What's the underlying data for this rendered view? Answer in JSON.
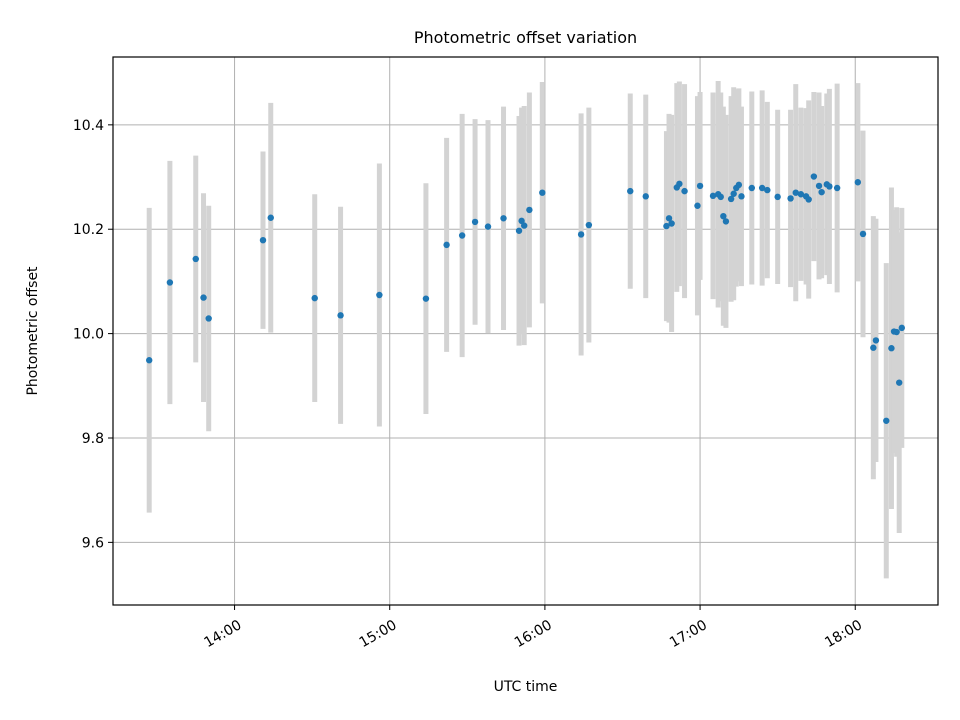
{
  "chart_data": {
    "type": "scatter",
    "title": "Photometric offset variation",
    "xlabel": "UTC time",
    "ylabel": "Photometric offset",
    "x_unit": "UTC hours",
    "xlim": [
      "13:13",
      "18:32"
    ],
    "ylim": [
      9.48,
      10.53
    ],
    "x_ticks": [
      "14:00",
      "15:00",
      "16:00",
      "17:00",
      "18:00"
    ],
    "y_ticks": [
      "9.6",
      "9.8",
      "10.0",
      "10.2",
      "10.4"
    ],
    "grid": true,
    "legend": "none",
    "colors": {
      "points": "#1f77b4",
      "error_bars": "#d3d3d3",
      "grid": "#b0b0b0"
    },
    "series": [
      {
        "x": [
          "13:27",
          "13:35",
          "13:45",
          "13:48",
          "13:50",
          "14:11",
          "14:14",
          "14:31",
          "14:41",
          "14:56",
          "15:14",
          "15:22",
          "15:28",
          "15:33",
          "15:38",
          "15:44",
          "15:50",
          "15:51",
          "15:52",
          "15:54",
          "15:59",
          "16:14",
          "16:17",
          "16:33",
          "16:39",
          "16:47",
          "16:48",
          "16:49",
          "16:51",
          "16:52",
          "16:54",
          "16:59",
          "17:00",
          "17:05",
          "17:07",
          "17:08",
          "17:09",
          "17:10",
          "17:12",
          "17:13",
          "17:14",
          "17:15",
          "17:16",
          "17:20",
          "17:24",
          "17:26",
          "17:30",
          "17:35",
          "17:37",
          "17:39",
          "17:41",
          "17:42",
          "17:44",
          "17:46",
          "17:47",
          "17:49",
          "17:50",
          "17:53",
          "18:01",
          "18:03",
          "18:07",
          "18:08",
          "18:12",
          "18:14",
          "18:15",
          "18:16",
          "18:17",
          "18:18"
        ],
        "y": [
          9.949,
          10.098,
          10.143,
          10.069,
          10.029,
          10.179,
          10.222,
          10.068,
          10.035,
          10.074,
          10.067,
          10.17,
          10.188,
          10.214,
          10.205,
          10.221,
          10.197,
          10.216,
          10.207,
          10.237,
          10.27,
          10.19,
          10.208,
          10.273,
          10.263,
          10.206,
          10.221,
          10.211,
          10.28,
          10.287,
          10.273,
          10.245,
          10.283,
          10.264,
          10.267,
          10.262,
          10.225,
          10.215,
          10.258,
          10.268,
          10.279,
          10.285,
          10.263,
          10.279,
          10.279,
          10.275,
          10.262,
          10.259,
          10.27,
          10.267,
          10.263,
          10.257,
          10.301,
          10.283,
          10.271,
          10.286,
          10.282,
          10.279,
          10.29,
          10.191,
          9.973,
          9.987,
          9.833,
          9.972,
          10.004,
          10.003,
          9.906,
          10.011
        ],
        "error": [
          0.292,
          0.233,
          0.198,
          0.2,
          0.216,
          0.17,
          0.22,
          0.199,
          0.208,
          0.252,
          0.221,
          0.205,
          0.233,
          0.197,
          0.204,
          0.214,
          0.22,
          0.217,
          0.229,
          0.225,
          0.212,
          0.232,
          0.225,
          0.187,
          0.195,
          0.182,
          0.2,
          0.208,
          0.2,
          0.196,
          0.205,
          0.21,
          0.18,
          0.198,
          0.217,
          0.2,
          0.21,
          0.204,
          0.197,
          0.204,
          0.189,
          0.185,
          0.172,
          0.185,
          0.187,
          0.169,
          0.167,
          0.17,
          0.208,
          0.166,
          0.169,
          0.19,
          0.162,
          0.179,
          0.165,
          0.174,
          0.187,
          0.2,
          0.19,
          0.198,
          0.252,
          0.233,
          0.302,
          0.308,
          0.233,
          0.239,
          0.288,
          0.23
        ]
      }
    ]
  }
}
